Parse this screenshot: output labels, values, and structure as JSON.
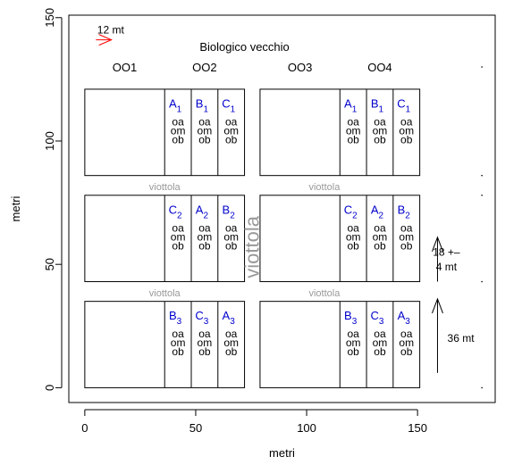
{
  "chart_data": {
    "type": "diagram",
    "title": "Biologico vecchio",
    "xlabel": "metri",
    "ylabel": "metri",
    "xlim": [
      -7.2,
      185
    ],
    "ylim": [
      -6,
      151
    ],
    "xticks": [
      0,
      50,
      100,
      150
    ],
    "yticks": [
      0,
      50,
      100,
      150
    ],
    "scale_label": "12 mt",
    "scale_color": "#ff0000",
    "group_labels": [
      {
        "label": "OO1",
        "x": 18,
        "y": 130
      },
      {
        "label": "OO2",
        "x": 54,
        "y": 130
      },
      {
        "label": "OO3",
        "x": 97,
        "y": 130
      },
      {
        "label": "OO4",
        "x": 133,
        "y": 130
      }
    ],
    "blocks": [
      {
        "x": [
          0,
          72
        ],
        "y": [
          86,
          121
        ],
        "cols": [
          36,
          48,
          60
        ]
      },
      {
        "x": [
          79,
          151
        ],
        "y": [
          86,
          121
        ],
        "cols": [
          115,
          127,
          139
        ]
      },
      {
        "x": [
          0,
          72
        ],
        "y": [
          43,
          78
        ],
        "cols": [
          36,
          48,
          60
        ]
      },
      {
        "x": [
          79,
          151
        ],
        "y": [
          43,
          78
        ],
        "cols": [
          115,
          127,
          139
        ]
      },
      {
        "x": [
          0,
          72
        ],
        "y": [
          0,
          35
        ],
        "cols": [
          36,
          48,
          60
        ]
      },
      {
        "x": [
          79,
          151
        ],
        "y": [
          0,
          35
        ],
        "cols": [
          115,
          127,
          139
        ]
      }
    ],
    "treatments": [
      {
        "letter": "A",
        "sub": "1",
        "x": 42,
        "y": 115
      },
      {
        "letter": "B",
        "sub": "1",
        "x": 54,
        "y": 115
      },
      {
        "letter": "C",
        "sub": "1",
        "x": 66,
        "y": 115
      },
      {
        "letter": "A",
        "sub": "1",
        "x": 121,
        "y": 115
      },
      {
        "letter": "B",
        "sub": "1",
        "x": 133,
        "y": 115
      },
      {
        "letter": "C",
        "sub": "1",
        "x": 145,
        "y": 115
      },
      {
        "letter": "C",
        "sub": "2",
        "x": 42,
        "y": 72
      },
      {
        "letter": "A",
        "sub": "2",
        "x": 54,
        "y": 72
      },
      {
        "letter": "B",
        "sub": "2",
        "x": 66,
        "y": 72
      },
      {
        "letter": "C",
        "sub": "2",
        "x": 121,
        "y": 72
      },
      {
        "letter": "A",
        "sub": "2",
        "x": 133,
        "y": 72
      },
      {
        "letter": "B",
        "sub": "2",
        "x": 145,
        "y": 72
      },
      {
        "letter": "B",
        "sub": "3",
        "x": 42,
        "y": 29
      },
      {
        "letter": "C",
        "sub": "3",
        "x": 54,
        "y": 29
      },
      {
        "letter": "A",
        "sub": "3",
        "x": 66,
        "y": 29
      },
      {
        "letter": "B",
        "sub": "3",
        "x": 121,
        "y": 29
      },
      {
        "letter": "C",
        "sub": "3",
        "x": 133,
        "y": 29
      },
      {
        "letter": "A",
        "sub": "3",
        "x": 145,
        "y": 29
      }
    ],
    "sub_labels": [
      "oa",
      "om",
      "ob"
    ],
    "path_label": "viottola",
    "path_labels": [
      {
        "x": 36,
        "y": 81.5
      },
      {
        "x": 108,
        "y": 81.5
      },
      {
        "x": 36,
        "y": 38.5
      },
      {
        "x": 108,
        "y": 38.5
      }
    ],
    "path_vertical": {
      "x": 76,
      "y": 57
    },
    "annotations": [
      {
        "label": "18 +–",
        "x": 163,
        "y": 55
      },
      {
        "label": "4 mt",
        "x": 163,
        "y": 49
      },
      {
        "label": "36 mt",
        "x": 169.5,
        "y": 20
      }
    ]
  }
}
